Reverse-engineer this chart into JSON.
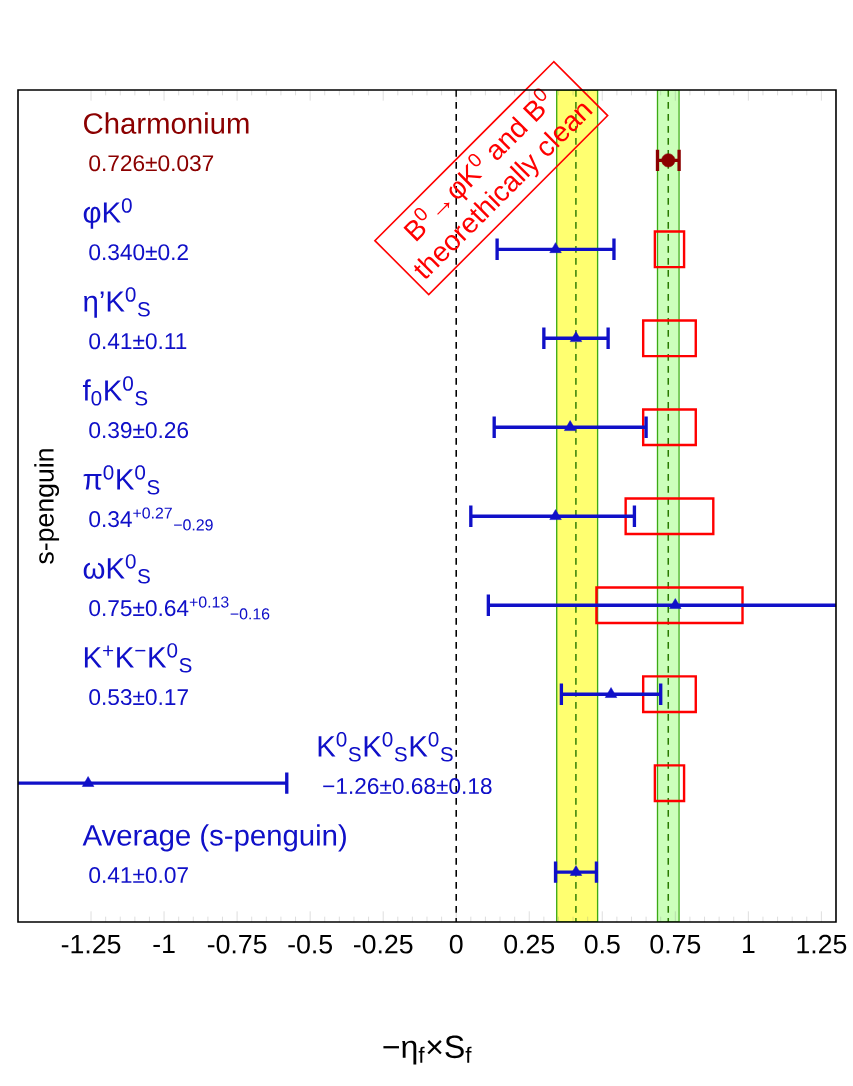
{
  "chart_data": {
    "type": "scatter",
    "orientation": "horizontal",
    "xlabel": "−η$_{f}$×S$_{f}$",
    "ylabel": "s-penguin",
    "categories": [
      "Charmonium",
      "φK$^{0}$",
      "η’K$^{0}$$_{S}$",
      "f$_{0}$K$^{0}$$_{S}$",
      "π$^{0}$K$^{0}$$_{S}$",
      "ωK$^{0}$$_{S}$",
      "K$^{+}$K$^{−}$K$^{0}$$_{S}$",
      "K$^{0}$$_{S}$K$^{0}$$_{S}$K$^{0}$$_{S}$",
      "Average (s-penguin)"
    ],
    "series": [
      {
        "color": "#8b0000",
        "marker": "circle",
        "values": [
          0.726,
          null,
          null,
          null,
          null,
          null,
          null,
          null,
          null
        ],
        "errors": [
          0.037,
          null,
          null,
          null,
          null,
          null,
          null,
          null,
          null
        ]
      },
      {
        "color": "#1010c8",
        "marker": "triangle",
        "values": [
          null,
          0.34,
          0.41,
          0.39,
          0.34,
          0.75,
          0.53,
          -1.26,
          0.41
        ],
        "errors": [
          null,
          0.2,
          0.11,
          0.26,
          [
            0.05,
            0.61
          ],
          0.64,
          0.17,
          0.68,
          0.07
        ]
      },
      {
        "type": "bar",
        "color": "#ff0000",
        "base": [
          null,
          0.68,
          0.64,
          0.64,
          0.58,
          0.48,
          0.64,
          0.68,
          null
        ],
        "values": [
          null,
          0.1,
          0.18,
          0.18,
          0.3,
          0.5,
          0.18,
          0.1,
          null
        ]
      }
    ],
    "xlim": [
      -1.5,
      1.3
    ],
    "xticks": [
      -1.25,
      -1,
      -0.75,
      -0.5,
      -0.25,
      0,
      0.25,
      0.5,
      0.75,
      1,
      1.25
    ],
    "ref_lines": [
      {
        "axis": "x",
        "value": 0,
        "color": "#000000",
        "line_style": "dashed"
      },
      {
        "axis": "x",
        "value": 0.41,
        "color": "#2a7a00",
        "line_style": "dashed"
      },
      {
        "axis": "x",
        "value": 0.726,
        "color": "#2a7a00",
        "line_style": "dashed"
      }
    ],
    "bands": [
      {
        "axis": "x",
        "from": 0.344,
        "to": 0.484,
        "color": "#ffff70"
      },
      {
        "axis": "x",
        "from": 0.689,
        "to": 0.763,
        "color": "#ccffbb"
      }
    ],
    "annotations": [
      "B$^{0}$→φK$^{0}$ and B$^{0}$",
      "theorethically clean",
      "0.726±0.037",
      "0.340±0.2",
      "0.41±0.11",
      "0.39±0.26",
      "0.34$^{+0.27}$$_{−0.29}$",
      "0.75±0.64$^{+0.13}$$_{−0.16}$",
      "0.53±0.17",
      "−1.26±0.68±0.18",
      "0.41±0.07"
    ],
    "grid": false
  }
}
